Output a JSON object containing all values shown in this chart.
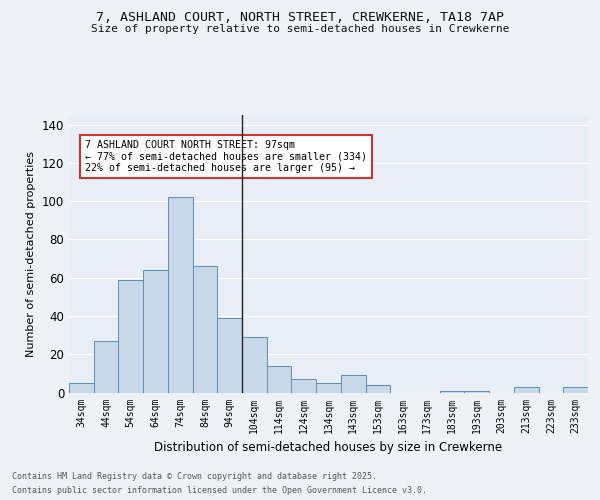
{
  "title1": "7, ASHLAND COURT, NORTH STREET, CREWKERNE, TA18 7AP",
  "title2": "Size of property relative to semi-detached houses in Crewkerne",
  "xlabel": "Distribution of semi-detached houses by size in Crewkerne",
  "ylabel": "Number of semi-detached properties",
  "annotation_line1": "7 ASHLAND COURT NORTH STREET: 97sqm",
  "annotation_line2": "← 77% of semi-detached houses are smaller (334)",
  "annotation_line3": "22% of semi-detached houses are larger (95) →",
  "bar_labels": [
    "34sqm",
    "44sqm",
    "54sqm",
    "64sqm",
    "74sqm",
    "84sqm",
    "94sqm",
    "104sqm",
    "114sqm",
    "124sqm",
    "134sqm",
    "143sqm",
    "153sqm",
    "163sqm",
    "173sqm",
    "183sqm",
    "193sqm",
    "203sqm",
    "213sqm",
    "223sqm",
    "233sqm"
  ],
  "bar_values": [
    5,
    27,
    59,
    64,
    102,
    66,
    39,
    29,
    14,
    7,
    5,
    9,
    4,
    0,
    0,
    1,
    1,
    0,
    3,
    0,
    3
  ],
  "bar_color": "#c8d8e8",
  "bar_edge_color": "#5b8db8",
  "property_line_index": 6.5,
  "ylim": [
    0,
    145
  ],
  "yticks": [
    0,
    20,
    40,
    60,
    80,
    100,
    120,
    140
  ],
  "footer_line1": "Contains HM Land Registry data © Crown copyright and database right 2025.",
  "footer_line2": "Contains public sector information licensed under the Open Government Licence v3.0.",
  "bg_color": "#eef2f6",
  "plot_bg_color": "#e8eef5"
}
